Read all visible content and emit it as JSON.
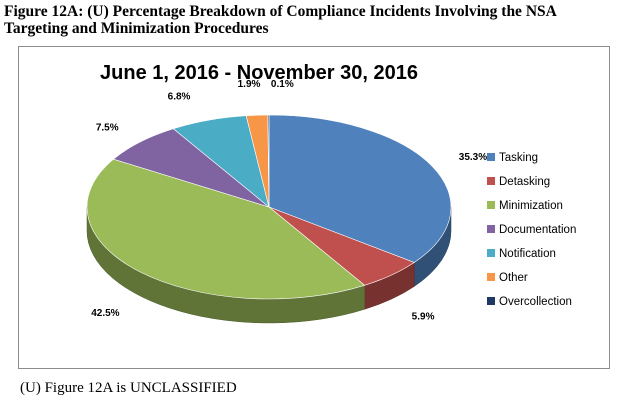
{
  "figure_caption_line1": "Figure 12A:  (U) Percentage Breakdown of Compliance Incidents Involving the NSA",
  "figure_caption_line2": "Targeting and Minimization Procedures",
  "footer_text": "(U) Figure 12A is UNCLASSIFIED",
  "chart_data": {
    "type": "pie",
    "title": "June 1, 2016 - November 30, 2016",
    "legend_position": "right",
    "three_d": true,
    "slices": [
      {
        "label": "Tasking",
        "value": 35.3,
        "value_label": "35.3%",
        "color": "#4f81bd"
      },
      {
        "label": "Detasking",
        "value": 5.9,
        "value_label": "5.9%",
        "color": "#c0504d"
      },
      {
        "label": "Minimization",
        "value": 42.5,
        "value_label": "42.5%",
        "color": "#9bbb59"
      },
      {
        "label": "Documentation",
        "value": 7.5,
        "value_label": "7.5%",
        "color": "#8064a2"
      },
      {
        "label": "Notification",
        "value": 6.8,
        "value_label": "6.8%",
        "color": "#4bacc6"
      },
      {
        "label": "Other",
        "value": 1.9,
        "value_label": "1.9%",
        "color": "#f79646"
      },
      {
        "label": "Overcollection",
        "value": 0.1,
        "value_label": "0.1%",
        "color": "#1f3864"
      }
    ]
  }
}
